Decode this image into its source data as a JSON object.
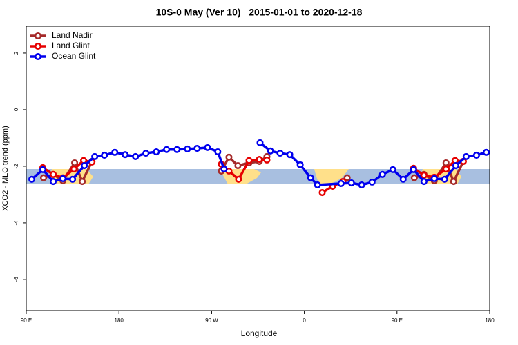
{
  "chart_data": {
    "type": "line",
    "title": "10S-0 May (Ver 10)   2015-01-01 to 2020-12-18",
    "xlabel": "Longitude",
    "ylabel": "XCO2 - MLO trend (ppm)",
    "xlim": [
      90,
      540
    ],
    "ylim": [
      -7.1,
      2.95
    ],
    "xticks": [
      {
        "value": 90,
        "label": "90 E"
      },
      180,
      {
        "value": 270,
        "label": "90 W"
      },
      {
        "value": 360,
        "label": "0"
      },
      {
        "value": 450,
        "label": "90 E"
      },
      {
        "value": 540,
        "label": "180"
      }
    ],
    "yticks": [
      2,
      0,
      -2,
      -4,
      -6
    ],
    "legend": "top-left",
    "series": [
      {
        "name": "Land Nadir",
        "color": "#a52a2a",
        "x": [
          106.8,
          116.2,
          125.6,
          137.0,
          144.4,
          153.8,
          200,
          279.4,
          286.8,
          295.5,
          306.3,
          316.3,
          323.7,
          360,
          401.6,
          430,
          466.8,
          476.2,
          486.2,
          497.6,
          505.0,
          514.4
        ],
        "values": [
          -2.41,
          -2.29,
          -2.51,
          -1.88,
          -2.54,
          -1.83,
          null,
          -2.17,
          -1.68,
          -1.98,
          -1.88,
          -1.83,
          -1.66,
          null,
          -2.41,
          null,
          -2.41,
          -2.29,
          -2.51,
          -1.88,
          -2.54,
          -1.83
        ]
      },
      {
        "name": "Land Glint",
        "color": "#e60000",
        "x": [
          106.1,
          116.2,
          125.6,
          136.3,
          145.7,
          153.8,
          200,
          279.4,
          286.8,
          296.2,
          306.3,
          316.3,
          323.7,
          350,
          377.4,
          387.4,
          397.5,
          430,
          466.1,
          476.2,
          486.2,
          497.6,
          506.4,
          514.4
        ],
        "values": [
          -2.05,
          -2.29,
          -2.41,
          -2.1,
          -1.8,
          -1.85,
          null,
          -1.93,
          -2.17,
          -2.46,
          -1.8,
          -1.76,
          -1.78,
          null,
          -2.93,
          -2.71,
          -2.54,
          null,
          -2.07,
          -2.32,
          -2.39,
          -2.1,
          -1.8,
          -1.83
        ]
      },
      {
        "name": "Ocean Glint",
        "color": "#0000ee",
        "x": [
          95.4,
          106.1,
          116.2,
          125.6,
          135.0,
          146.4,
          156.5,
          165.9,
          176.0,
          186.0,
          196.1,
          206.2,
          216.3,
          226.3,
          236.4,
          246.5,
          255.9,
          266.0,
          276.0,
          282.1,
          300,
          317.0,
          327.1,
          336.5,
          345.9,
          356.0,
          366.1,
          372.8,
          395.6,
          405.7,
          415.7,
          425.8,
          435.9,
          446.0,
          456.0,
          466.1,
          476.2,
          486.2,
          496.3,
          507.1,
          517.1,
          527.2,
          536.6
        ],
        "values": [
          -2.46,
          -2.12,
          -2.54,
          -2.44,
          -2.46,
          -1.98,
          -1.66,
          -1.61,
          -1.51,
          -1.59,
          -1.66,
          -1.54,
          -1.49,
          -1.41,
          -1.41,
          -1.39,
          -1.37,
          -1.34,
          -1.49,
          -2.1,
          null,
          -1.17,
          -1.46,
          -1.54,
          -1.59,
          -1.95,
          -2.41,
          -2.66,
          -2.61,
          -2.59,
          -2.66,
          -2.56,
          -2.29,
          -2.12,
          -2.46,
          -2.12,
          -2.54,
          -2.44,
          -2.46,
          -1.98,
          -1.66,
          -1.61,
          -1.51
        ]
      }
    ]
  }
}
